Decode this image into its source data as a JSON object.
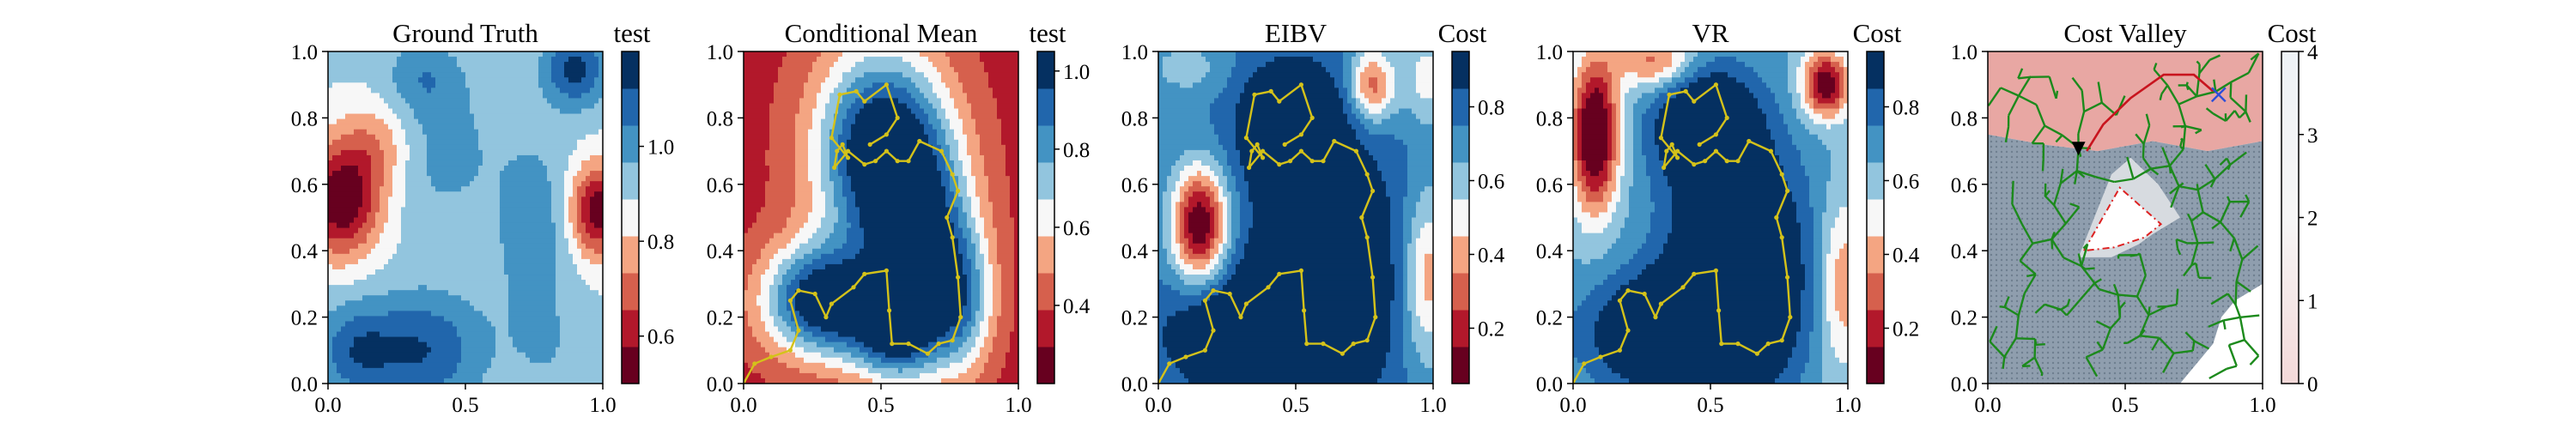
{
  "chart_data": [
    {
      "type": "heatmap",
      "title": "Ground Truth",
      "colorbar_label": "test",
      "xlim": [
        0.0,
        1.0
      ],
      "ylim": [
        0.0,
        1.0
      ],
      "x_ticks": [
        "0.0",
        "0.5",
        "1.0"
      ],
      "y_ticks": [
        "0.0",
        "0.2",
        "0.4",
        "0.6",
        "0.8",
        "1.0"
      ],
      "colormap": "RdBu",
      "colorbar_ticks": [
        "0.6",
        "0.8",
        "1.0"
      ],
      "field": {
        "base": 0.9,
        "blobs": [
          {
            "x": 0.05,
            "y": 0.55,
            "amp": -0.4,
            "sx": 0.1,
            "sy": 0.12
          },
          {
            "x": 0.18,
            "y": 0.72,
            "amp": -0.15,
            "sx": 0.1,
            "sy": 0.1
          },
          {
            "x": 0.98,
            "y": 0.52,
            "amp": -0.38,
            "sx": 0.07,
            "sy": 0.1
          },
          {
            "x": 0.9,
            "y": 0.95,
            "amp": 0.25,
            "sx": 0.08,
            "sy": 0.08
          },
          {
            "x": 0.35,
            "y": 0.1,
            "amp": 0.22,
            "sx": 0.15,
            "sy": 0.12
          },
          {
            "x": 0.1,
            "y": 0.1,
            "amp": 0.18,
            "sx": 0.1,
            "sy": 0.1
          },
          {
            "x": 0.75,
            "y": 0.45,
            "amp": 0.12,
            "sx": 0.1,
            "sy": 0.2
          },
          {
            "x": 0.4,
            "y": 0.7,
            "amp": 0.1,
            "sx": 0.15,
            "sy": 0.15
          },
          {
            "x": 0.35,
            "y": 0.92,
            "amp": 0.12,
            "sx": 0.1,
            "sy": 0.08
          },
          {
            "x": 0.8,
            "y": 0.1,
            "amp": 0.05,
            "sx": 0.1,
            "sy": 0.1
          }
        ],
        "vmin": 0.5,
        "vmax": 1.2,
        "levels": 9
      }
    },
    {
      "type": "heatmap",
      "title": "Conditional Mean",
      "colorbar_label": "test",
      "xlim": [
        0.0,
        1.0
      ],
      "ylim": [
        0.0,
        1.0
      ],
      "x_ticks": [
        "0.0",
        "0.5",
        "1.0"
      ],
      "y_ticks": [
        "0.0",
        "0.2",
        "0.4",
        "0.6",
        "0.8",
        "1.0"
      ],
      "colormap": "RdBu",
      "colorbar_ticks": [
        "0.4",
        "0.6",
        "0.8",
        "1.0"
      ],
      "field": {
        "base": 0.35,
        "blobs": [
          {
            "x": 0.5,
            "y": 0.7,
            "amp": 0.75,
            "sx": 0.17,
            "sy": 0.22
          },
          {
            "x": 0.65,
            "y": 0.4,
            "amp": 0.55,
            "sx": 0.13,
            "sy": 0.22
          },
          {
            "x": 0.28,
            "y": 0.25,
            "amp": 0.7,
            "sx": 0.15,
            "sy": 0.12
          },
          {
            "x": 0.55,
            "y": 0.15,
            "amp": 0.5,
            "sx": 0.12,
            "sy": 0.1
          },
          {
            "x": 0.8,
            "y": 0.25,
            "amp": 0.35,
            "sx": 0.08,
            "sy": 0.15
          }
        ],
        "vmin": 0.2,
        "vmax": 1.05,
        "levels": 9
      },
      "path": [
        [
          0.0,
          0.0
        ],
        [
          0.04,
          0.06
        ],
        [
          0.1,
          0.08
        ],
        [
          0.17,
          0.1
        ],
        [
          0.2,
          0.16
        ],
        [
          0.17,
          0.25
        ],
        [
          0.2,
          0.28
        ],
        [
          0.26,
          0.27
        ],
        [
          0.3,
          0.2
        ],
        [
          0.32,
          0.24
        ],
        [
          0.4,
          0.29
        ],
        [
          0.44,
          0.33
        ],
        [
          0.52,
          0.34
        ],
        [
          0.53,
          0.22
        ],
        [
          0.54,
          0.12
        ],
        [
          0.6,
          0.12
        ],
        [
          0.67,
          0.09
        ],
        [
          0.71,
          0.12
        ],
        [
          0.76,
          0.13
        ],
        [
          0.79,
          0.2
        ],
        [
          0.78,
          0.32
        ],
        [
          0.76,
          0.44
        ],
        [
          0.74,
          0.5
        ],
        [
          0.78,
          0.58
        ],
        [
          0.76,
          0.63
        ],
        [
          0.72,
          0.7
        ],
        [
          0.64,
          0.73
        ],
        [
          0.6,
          0.67
        ],
        [
          0.56,
          0.67
        ],
        [
          0.52,
          0.7
        ],
        [
          0.48,
          0.67
        ],
        [
          0.44,
          0.66
        ],
        [
          0.38,
          0.7
        ],
        [
          0.33,
          0.65
        ],
        [
          0.34,
          0.7
        ],
        [
          0.36,
          0.72
        ],
        [
          0.38,
          0.68
        ],
        [
          0.32,
          0.74
        ],
        [
          0.35,
          0.87
        ],
        [
          0.41,
          0.88
        ],
        [
          0.44,
          0.85
        ],
        [
          0.52,
          0.9
        ],
        [
          0.56,
          0.8
        ],
        [
          0.52,
          0.75
        ],
        [
          0.46,
          0.72
        ]
      ]
    },
    {
      "type": "heatmap",
      "title": "EIBV",
      "colorbar_label": "Cost",
      "xlim": [
        0.0,
        1.0
      ],
      "ylim": [
        0.0,
        1.0
      ],
      "x_ticks": [
        "0.0",
        "0.5",
        "1.0"
      ],
      "y_ticks": [
        "0.0",
        "0.2",
        "0.4",
        "0.6",
        "0.8",
        "1.0"
      ],
      "colormap": "RdBu",
      "colorbar_ticks": [
        "0.2",
        "0.4",
        "0.6",
        "0.8"
      ],
      "field": {
        "base": 0.75,
        "blobs": [
          {
            "x": 0.15,
            "y": 0.48,
            "amp": -0.7,
            "sx": 0.07,
            "sy": 0.12
          },
          {
            "x": 0.78,
            "y": 0.9,
            "amp": -0.45,
            "sx": 0.06,
            "sy": 0.08
          },
          {
            "x": 0.98,
            "y": 0.32,
            "amp": -0.35,
            "sx": 0.06,
            "sy": 0.18
          },
          {
            "x": 0.98,
            "y": 0.92,
            "amp": -0.25,
            "sx": 0.06,
            "sy": 0.1
          },
          {
            "x": 0.1,
            "y": 0.95,
            "amp": -0.15,
            "sx": 0.1,
            "sy": 0.06
          },
          {
            "x": 0.6,
            "y": 0.35,
            "amp": 0.45,
            "sx": 0.16,
            "sy": 0.25
          },
          {
            "x": 0.35,
            "y": 0.15,
            "amp": 0.4,
            "sx": 0.2,
            "sy": 0.12
          },
          {
            "x": 0.48,
            "y": 0.78,
            "amp": 0.4,
            "sx": 0.12,
            "sy": 0.12
          }
        ],
        "vmin": 0.05,
        "vmax": 0.95,
        "levels": 9
      },
      "path": [
        [
          0.0,
          0.0
        ],
        [
          0.04,
          0.06
        ],
        [
          0.1,
          0.08
        ],
        [
          0.17,
          0.1
        ],
        [
          0.2,
          0.16
        ],
        [
          0.17,
          0.25
        ],
        [
          0.2,
          0.28
        ],
        [
          0.26,
          0.27
        ],
        [
          0.3,
          0.2
        ],
        [
          0.32,
          0.24
        ],
        [
          0.4,
          0.29
        ],
        [
          0.44,
          0.33
        ],
        [
          0.52,
          0.34
        ],
        [
          0.53,
          0.22
        ],
        [
          0.54,
          0.12
        ],
        [
          0.6,
          0.12
        ],
        [
          0.67,
          0.09
        ],
        [
          0.71,
          0.12
        ],
        [
          0.76,
          0.13
        ],
        [
          0.79,
          0.2
        ],
        [
          0.78,
          0.32
        ],
        [
          0.76,
          0.44
        ],
        [
          0.74,
          0.5
        ],
        [
          0.78,
          0.58
        ],
        [
          0.76,
          0.63
        ],
        [
          0.72,
          0.7
        ],
        [
          0.64,
          0.73
        ],
        [
          0.6,
          0.67
        ],
        [
          0.56,
          0.67
        ],
        [
          0.52,
          0.7
        ],
        [
          0.48,
          0.67
        ],
        [
          0.44,
          0.66
        ],
        [
          0.38,
          0.7
        ],
        [
          0.33,
          0.65
        ],
        [
          0.34,
          0.7
        ],
        [
          0.36,
          0.72
        ],
        [
          0.38,
          0.68
        ],
        [
          0.32,
          0.74
        ],
        [
          0.35,
          0.87
        ],
        [
          0.41,
          0.88
        ],
        [
          0.44,
          0.85
        ],
        [
          0.52,
          0.9
        ],
        [
          0.56,
          0.8
        ],
        [
          0.52,
          0.75
        ],
        [
          0.46,
          0.72
        ]
      ]
    },
    {
      "type": "heatmap",
      "title": "VR",
      "colorbar_label": "Cost",
      "xlim": [
        0.0,
        1.0
      ],
      "ylim": [
        0.0,
        1.0
      ],
      "x_ticks": [
        "0.0",
        "0.5",
        "1.0"
      ],
      "y_ticks": [
        "0.0",
        "0.2",
        "0.4",
        "0.6",
        "0.8",
        "1.0"
      ],
      "colormap": "RdBu",
      "colorbar_ticks": [
        "0.2",
        "0.4",
        "0.6",
        "0.8"
      ],
      "field": {
        "base": 0.65,
        "blobs": [
          {
            "x": 0.08,
            "y": 0.75,
            "amp": -0.7,
            "sx": 0.06,
            "sy": 0.16
          },
          {
            "x": 0.92,
            "y": 0.9,
            "amp": -0.6,
            "sx": 0.06,
            "sy": 0.07
          },
          {
            "x": 0.3,
            "y": 0.97,
            "amp": -0.35,
            "sx": 0.1,
            "sy": 0.06
          },
          {
            "x": 0.98,
            "y": 0.3,
            "amp": -0.3,
            "sx": 0.06,
            "sy": 0.18
          },
          {
            "x": 0.6,
            "y": 0.35,
            "amp": 0.55,
            "sx": 0.17,
            "sy": 0.25
          },
          {
            "x": 0.35,
            "y": 0.15,
            "amp": 0.5,
            "sx": 0.2,
            "sy": 0.12
          },
          {
            "x": 0.48,
            "y": 0.78,
            "amp": 0.45,
            "sx": 0.13,
            "sy": 0.12
          }
        ],
        "vmin": 0.05,
        "vmax": 0.95,
        "levels": 9
      },
      "path": [
        [
          0.0,
          0.0
        ],
        [
          0.04,
          0.06
        ],
        [
          0.1,
          0.08
        ],
        [
          0.17,
          0.1
        ],
        [
          0.2,
          0.16
        ],
        [
          0.17,
          0.25
        ],
        [
          0.2,
          0.28
        ],
        [
          0.26,
          0.27
        ],
        [
          0.3,
          0.2
        ],
        [
          0.32,
          0.24
        ],
        [
          0.4,
          0.29
        ],
        [
          0.44,
          0.33
        ],
        [
          0.52,
          0.34
        ],
        [
          0.53,
          0.22
        ],
        [
          0.54,
          0.12
        ],
        [
          0.6,
          0.12
        ],
        [
          0.67,
          0.09
        ],
        [
          0.71,
          0.12
        ],
        [
          0.76,
          0.13
        ],
        [
          0.79,
          0.2
        ],
        [
          0.78,
          0.32
        ],
        [
          0.76,
          0.44
        ],
        [
          0.74,
          0.5
        ],
        [
          0.78,
          0.58
        ],
        [
          0.76,
          0.63
        ],
        [
          0.72,
          0.7
        ],
        [
          0.64,
          0.73
        ],
        [
          0.6,
          0.67
        ],
        [
          0.56,
          0.67
        ],
        [
          0.52,
          0.7
        ],
        [
          0.48,
          0.67
        ],
        [
          0.44,
          0.66
        ],
        [
          0.38,
          0.7
        ],
        [
          0.33,
          0.65
        ],
        [
          0.34,
          0.7
        ],
        [
          0.36,
          0.72
        ],
        [
          0.38,
          0.68
        ],
        [
          0.32,
          0.74
        ],
        [
          0.35,
          0.87
        ],
        [
          0.41,
          0.88
        ],
        [
          0.44,
          0.85
        ],
        [
          0.52,
          0.9
        ],
        [
          0.56,
          0.8
        ],
        [
          0.52,
          0.75
        ],
        [
          0.46,
          0.72
        ]
      ]
    },
    {
      "type": "heatmap",
      "title": "Cost Valley",
      "colorbar_label": "Cost",
      "xlim": [
        0.0,
        1.0
      ],
      "ylim": [
        0.0,
        1.0
      ],
      "x_ticks": [
        "0.0",
        "0.5",
        "1.0"
      ],
      "y_ticks": [
        "0.0",
        "0.2",
        "0.4",
        "0.6",
        "0.8",
        "1.0"
      ],
      "colormap": "cost_valley",
      "colorbar_ticks": [
        "0",
        "1",
        "2",
        "3",
        "4"
      ],
      "vmin": 0,
      "vmax": 4,
      "regions": {
        "pink_top": [
          [
            0.0,
            1.0
          ],
          [
            1.0,
            1.0
          ],
          [
            1.0,
            0.73
          ],
          [
            0.8,
            0.7
          ],
          [
            0.6,
            0.73
          ],
          [
            0.4,
            0.7
          ],
          [
            0.2,
            0.72
          ],
          [
            0.0,
            0.75
          ]
        ],
        "valley": [
          [
            0.0,
            0.75
          ],
          [
            0.2,
            0.72
          ],
          [
            0.4,
            0.7
          ],
          [
            0.6,
            0.73
          ],
          [
            0.8,
            0.7
          ],
          [
            1.0,
            0.73
          ],
          [
            1.0,
            0.3
          ],
          [
            0.9,
            0.25
          ],
          [
            0.85,
            0.2
          ],
          [
            0.82,
            0.12
          ],
          [
            0.75,
            0.05
          ],
          [
            0.7,
            0.0
          ],
          [
            0.0,
            0.0
          ]
        ],
        "obstacle_outer": [
          [
            0.33,
            0.38
          ],
          [
            0.45,
            0.63
          ],
          [
            0.52,
            0.68
          ],
          [
            0.62,
            0.6
          ],
          [
            0.7,
            0.5
          ],
          [
            0.6,
            0.45
          ],
          [
            0.55,
            0.42
          ],
          [
            0.45,
            0.38
          ]
        ],
        "obstacle_inner": [
          [
            0.35,
            0.4
          ],
          [
            0.48,
            0.59
          ],
          [
            0.63,
            0.48
          ],
          [
            0.57,
            0.44
          ],
          [
            0.46,
            0.41
          ]
        ]
      },
      "red_path": [
        [
          0.36,
          0.7
        ],
        [
          0.42,
          0.78
        ],
        [
          0.52,
          0.86
        ],
        [
          0.64,
          0.93
        ],
        [
          0.75,
          0.93
        ],
        [
          0.82,
          0.88
        ]
      ],
      "start_marker": [
        0.33,
        0.71
      ],
      "goal_marker": [
        0.84,
        0.87
      ],
      "tree_seed": 7
    }
  ]
}
